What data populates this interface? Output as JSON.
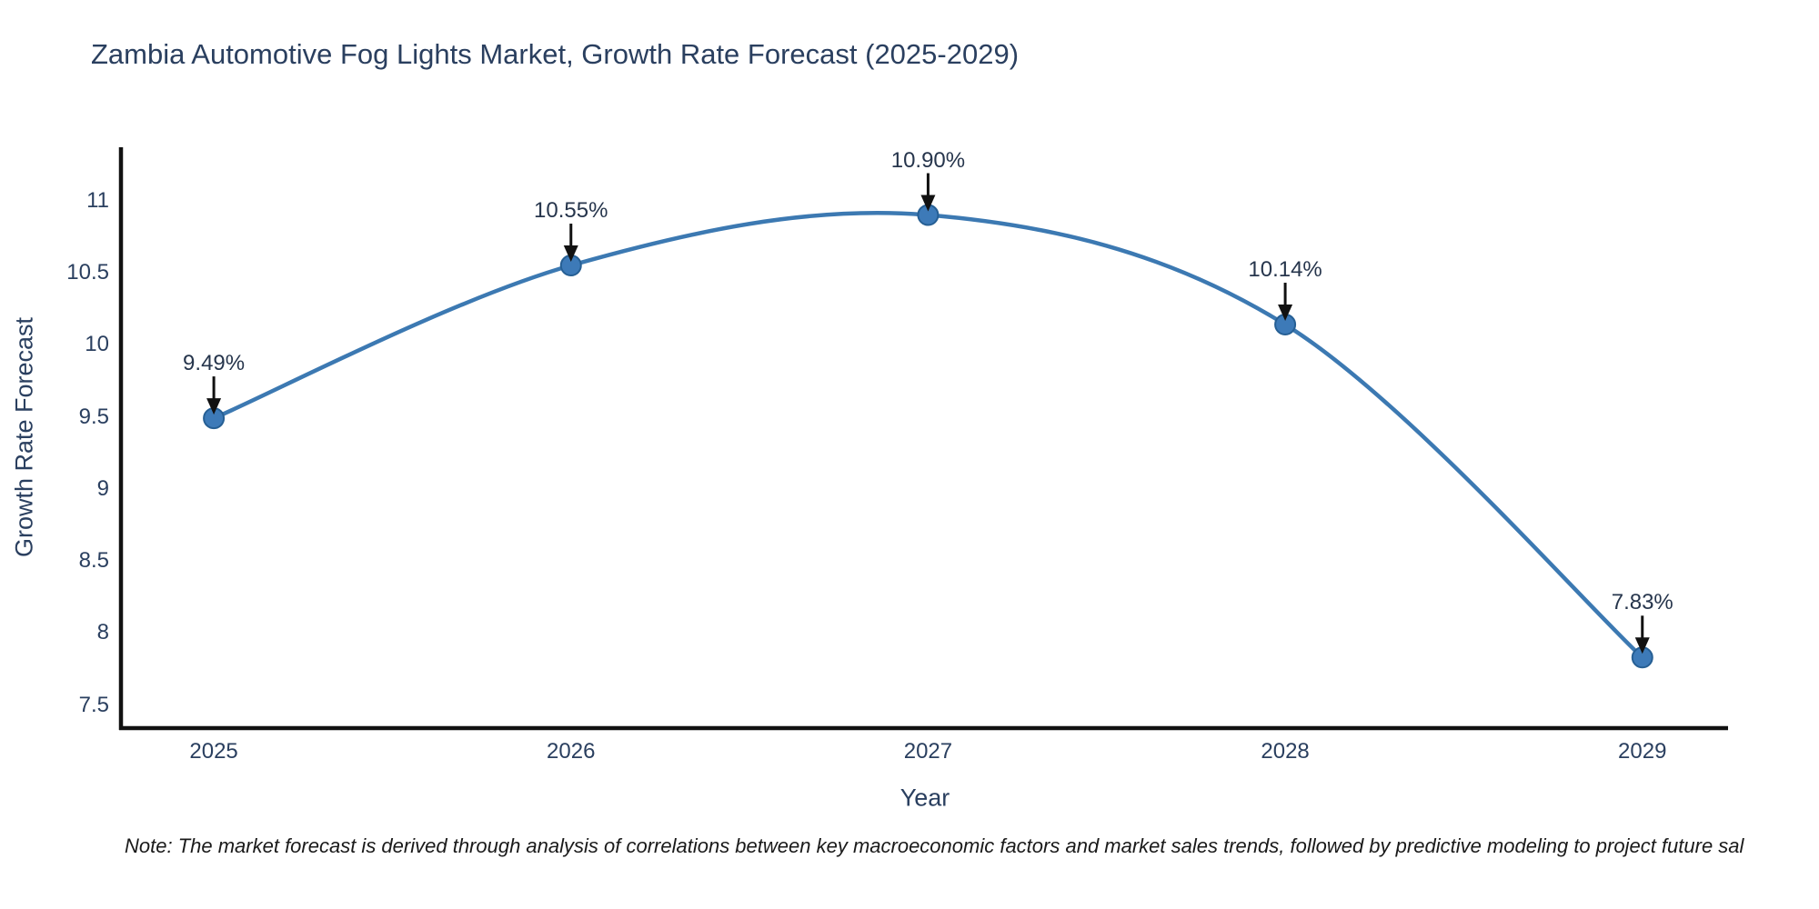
{
  "title": "Zambia Automotive Fog Lights Market, Growth Rate Forecast (2025-2029)",
  "note": "Note: The market forecast is derived through analysis of correlations between key macroeconomic factors and market sales trends, followed by predictive modeling to project future sal",
  "colors": {
    "text": "#2a3f5f",
    "line": "#3c79b2",
    "marker_fill": "#3d7ab8",
    "marker_stroke": "#265f94",
    "axis": "#111111",
    "arrow": "#111111"
  },
  "chart_data": {
    "type": "line",
    "title": "Zambia Automotive Fog Lights Market, Growth Rate Forecast (2025-2029)",
    "xlabel": "Year",
    "ylabel": "Growth Rate Forecast",
    "x": [
      2025,
      2026,
      2027,
      2028,
      2029
    ],
    "values": [
      9.49,
      10.55,
      10.9,
      10.14,
      7.83
    ],
    "point_labels": [
      "9.49%",
      "10.55%",
      "10.90%",
      "10.14%",
      "7.83%"
    ],
    "xtick_labels": [
      "2025",
      "2026",
      "2027",
      "2028",
      "2029"
    ],
    "ytick_values": [
      7.5,
      8,
      8.5,
      9,
      9.5,
      10,
      10.5,
      11
    ],
    "ytick_labels": [
      "7.5",
      "8",
      "8.5",
      "9",
      "9.5",
      "10",
      "10.5",
      "11"
    ],
    "xlim": [
      2024.74,
      2029.24
    ],
    "ylim": [
      7.34,
      11.37
    ],
    "grid": false,
    "legend": "none",
    "line_shape": "spline",
    "annotations_arrow": "down-arrow-to-point"
  }
}
